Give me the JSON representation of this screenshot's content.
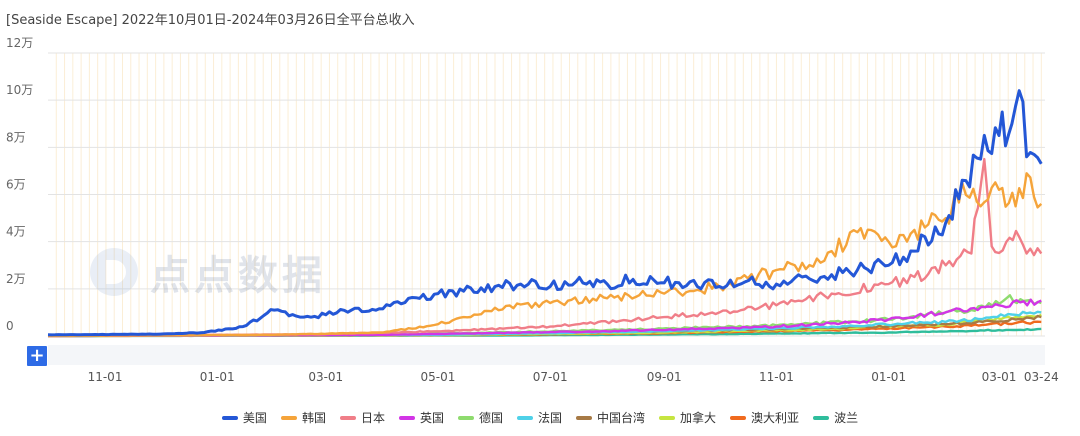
{
  "title": "[Seaside Escape]  2022年10月01日-2024年03月26日全平台总收入",
  "add_button": "+",
  "watermark": "点点数据",
  "chart_data": {
    "type": "line",
    "title": "[Seaside Escape]  2022年10月01日-2024年03月26日全平台总收入",
    "x_range": [
      "2022-10-01",
      "2024-03-26"
    ],
    "x_ticks": [
      {
        "label": "11-01",
        "date": "2022-11-01"
      },
      {
        "label": "01-01",
        "date": "2023-01-01"
      },
      {
        "label": "03-01",
        "date": "2023-03-01"
      },
      {
        "label": "05-01",
        "date": "2023-05-01"
      },
      {
        "label": "07-01",
        "date": "2023-07-01"
      },
      {
        "label": "09-01",
        "date": "2023-09-01"
      },
      {
        "label": "11-01",
        "date": "2023-11-01"
      },
      {
        "label": "01-01",
        "date": "2024-01-01"
      },
      {
        "label": "03-01",
        "date": "2024-03-01"
      },
      {
        "label": "03-24",
        "date": "2024-03-24"
      }
    ],
    "y_ticks": [
      {
        "label": "0",
        "value": 0
      },
      {
        "label": "2万",
        "value": 20000
      },
      {
        "label": "4万",
        "value": 40000
      },
      {
        "label": "6万",
        "value": 60000
      },
      {
        "label": "8万",
        "value": 80000
      },
      {
        "label": "10万",
        "value": 100000
      },
      {
        "label": "12万",
        "value": 120000
      }
    ],
    "ylim": [
      0,
      120000
    ],
    "grid": true,
    "legend_position": "bottom",
    "series": [
      {
        "name": "美国",
        "color": "#2457d6",
        "points": [
          [
            "2022-10-01",
            500
          ],
          [
            "2022-12-01",
            800
          ],
          [
            "2022-12-25",
            1500
          ],
          [
            "2023-01-15",
            4000
          ],
          [
            "2023-02-01",
            11000
          ],
          [
            "2023-02-15",
            8000
          ],
          [
            "2023-03-01",
            9000
          ],
          [
            "2023-03-15",
            11000
          ],
          [
            "2023-04-01",
            11500
          ],
          [
            "2023-04-15",
            16000
          ],
          [
            "2023-05-01",
            18000
          ],
          [
            "2023-05-15",
            19000
          ],
          [
            "2023-06-01",
            21000
          ],
          [
            "2023-06-15",
            22000
          ],
          [
            "2023-07-01",
            21000
          ],
          [
            "2023-07-15",
            23000
          ],
          [
            "2023-08-01",
            22000
          ],
          [
            "2023-08-15",
            24000
          ],
          [
            "2023-09-01",
            22500
          ],
          [
            "2023-09-15",
            23000
          ],
          [
            "2023-10-01",
            21000
          ],
          [
            "2023-10-15",
            23000
          ],
          [
            "2023-11-01",
            22000
          ],
          [
            "2023-11-15",
            25000
          ],
          [
            "2023-12-01",
            26000
          ],
          [
            "2023-12-15",
            28000
          ],
          [
            "2024-01-01",
            30000
          ],
          [
            "2024-01-15",
            36000
          ],
          [
            "2024-02-01",
            48000
          ],
          [
            "2024-02-10",
            66000
          ],
          [
            "2024-02-20",
            75000
          ],
          [
            "2024-03-01",
            85000
          ],
          [
            "2024-03-08",
            90000
          ],
          [
            "2024-03-12",
            104000
          ],
          [
            "2024-03-16",
            76000
          ],
          [
            "2024-03-20",
            77000
          ],
          [
            "2024-03-24",
            73000
          ]
        ]
      },
      {
        "name": "韩国",
        "color": "#f5a43a",
        "points": [
          [
            "2022-10-01",
            0
          ],
          [
            "2023-02-01",
            500
          ],
          [
            "2023-04-01",
            1500
          ],
          [
            "2023-05-01",
            5000
          ],
          [
            "2023-05-15",
            8000
          ],
          [
            "2023-06-01",
            12000
          ],
          [
            "2023-07-01",
            14000
          ],
          [
            "2023-08-01",
            16000
          ],
          [
            "2023-09-01",
            18000
          ],
          [
            "2023-10-01",
            21000
          ],
          [
            "2023-11-01",
            28000
          ],
          [
            "2023-11-15",
            31000
          ],
          [
            "2023-12-01",
            36000
          ],
          [
            "2023-12-15",
            44000
          ],
          [
            "2024-01-01",
            40000
          ],
          [
            "2024-01-15",
            45000
          ],
          [
            "2024-02-01",
            50000
          ],
          [
            "2024-02-10",
            65000
          ],
          [
            "2024-02-20",
            55000
          ],
          [
            "2024-03-01",
            62000
          ],
          [
            "2024-03-10",
            55000
          ],
          [
            "2024-03-16",
            69000
          ],
          [
            "2024-03-20",
            59000
          ],
          [
            "2024-03-24",
            56000
          ]
        ]
      },
      {
        "name": "日本",
        "color": "#f07e88",
        "points": [
          [
            "2022-10-01",
            0
          ],
          [
            "2023-03-01",
            800
          ],
          [
            "2023-05-01",
            2000
          ],
          [
            "2023-07-01",
            4000
          ],
          [
            "2023-09-01",
            8000
          ],
          [
            "2023-10-01",
            10000
          ],
          [
            "2023-11-01",
            13000
          ],
          [
            "2023-12-01",
            18000
          ],
          [
            "2024-01-01",
            22000
          ],
          [
            "2024-01-15",
            25000
          ],
          [
            "2024-02-01",
            30000
          ],
          [
            "2024-02-15",
            35000
          ],
          [
            "2024-02-22",
            75000
          ],
          [
            "2024-02-26",
            38000
          ],
          [
            "2024-03-05",
            40000
          ],
          [
            "2024-03-12",
            42000
          ],
          [
            "2024-03-18",
            37000
          ],
          [
            "2024-03-24",
            35000
          ]
        ]
      },
      {
        "name": "英国",
        "color": "#d235e6",
        "points": [
          [
            "2022-10-01",
            0
          ],
          [
            "2023-04-01",
            500
          ],
          [
            "2023-08-01",
            2000
          ],
          [
            "2023-11-01",
            4000
          ],
          [
            "2024-01-01",
            7000
          ],
          [
            "2024-02-01",
            10000
          ],
          [
            "2024-03-01",
            13000
          ],
          [
            "2024-03-24",
            15000
          ]
        ]
      },
      {
        "name": "德国",
        "color": "#8edb6e",
        "points": [
          [
            "2022-10-01",
            0
          ],
          [
            "2023-04-01",
            500
          ],
          [
            "2023-08-01",
            2500
          ],
          [
            "2023-11-01",
            4500
          ],
          [
            "2024-01-01",
            7000
          ],
          [
            "2024-02-15",
            11000
          ],
          [
            "2024-03-05",
            16000
          ],
          [
            "2024-03-24",
            14000
          ]
        ]
      },
      {
        "name": "法国",
        "color": "#4fd1e8",
        "points": [
          [
            "2022-10-01",
            0
          ],
          [
            "2023-05-01",
            500
          ],
          [
            "2023-09-01",
            2000
          ],
          [
            "2023-12-01",
            4000
          ],
          [
            "2024-02-01",
            6000
          ],
          [
            "2024-03-10",
            9000
          ],
          [
            "2024-03-24",
            10000
          ]
        ]
      },
      {
        "name": "中国台湾",
        "color": "#a77a45",
        "points": [
          [
            "2022-10-01",
            0
          ],
          [
            "2023-05-01",
            600
          ],
          [
            "2023-09-01",
            2000
          ],
          [
            "2023-12-01",
            3500
          ],
          [
            "2024-02-01",
            5000
          ],
          [
            "2024-03-10",
            7000
          ],
          [
            "2024-03-24",
            8000
          ]
        ]
      },
      {
        "name": "加拿大",
        "color": "#c6e540",
        "points": [
          [
            "2022-10-01",
            0
          ],
          [
            "2023-05-01",
            400
          ],
          [
            "2023-09-01",
            1500
          ],
          [
            "2023-12-01",
            3000
          ],
          [
            "2024-02-01",
            5000
          ],
          [
            "2024-03-10",
            8000
          ],
          [
            "2024-03-24",
            9000
          ]
        ]
      },
      {
        "name": "澳大利亚",
        "color": "#f06a1e",
        "points": [
          [
            "2022-10-01",
            0
          ],
          [
            "2023-05-01",
            300
          ],
          [
            "2023-09-01",
            1200
          ],
          [
            "2023-12-01",
            2500
          ],
          [
            "2024-02-01",
            4000
          ],
          [
            "2024-03-10",
            5500
          ],
          [
            "2024-03-24",
            6000
          ]
        ]
      },
      {
        "name": "波兰",
        "color": "#2fbd9c",
        "points": [
          [
            "2022-10-01",
            0
          ],
          [
            "2023-06-01",
            200
          ],
          [
            "2023-10-01",
            800
          ],
          [
            "2024-01-01",
            1500
          ],
          [
            "2024-03-01",
            2500
          ],
          [
            "2024-03-24",
            3000
          ]
        ]
      }
    ]
  }
}
